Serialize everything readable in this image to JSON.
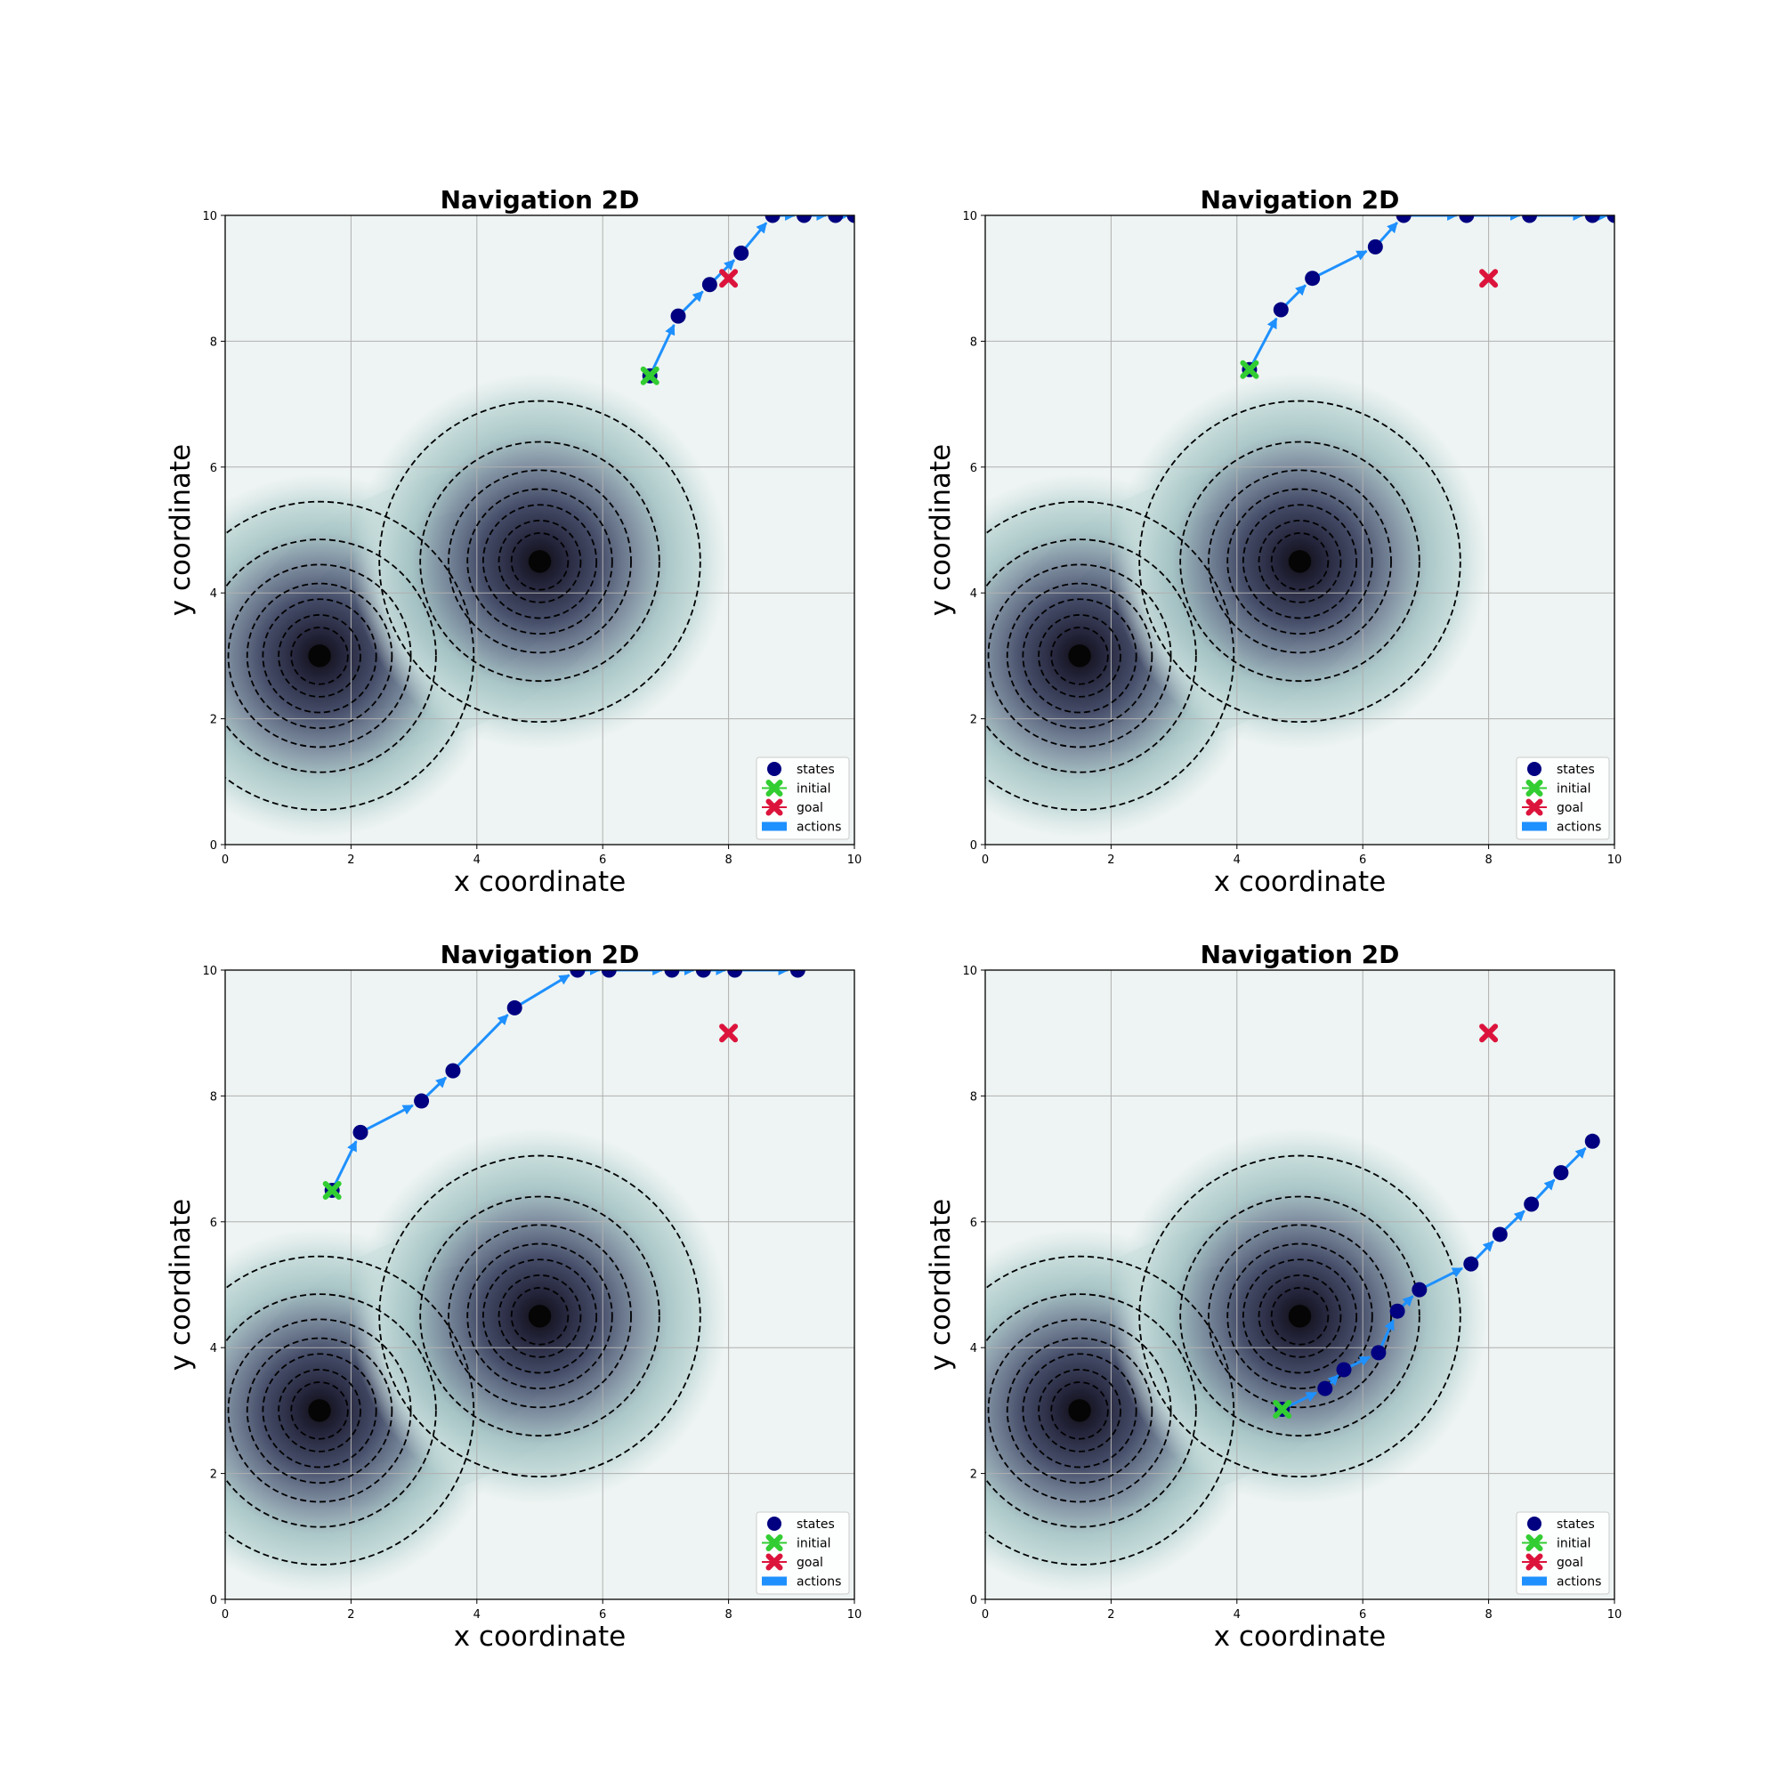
{
  "chart_data": [
    {
      "type": "scatter",
      "title": "Navigation 2D",
      "xlabel": "x coordinate",
      "ylabel": "y coordinate",
      "xlim": [
        0,
        10
      ],
      "ylim": [
        0,
        10
      ],
      "xticks": [
        "0",
        "2",
        "4",
        "6",
        "8",
        "10"
      ],
      "yticks": [
        "0",
        "2",
        "4",
        "6",
        "8",
        "10"
      ],
      "grid": true,
      "legend_position": "lower-right",
      "legend": [
        "states",
        "initial",
        "goal",
        "actions"
      ],
      "obstacle_centers": [
        [
          1.5,
          3.0
        ],
        [
          5.0,
          4.5
        ]
      ],
      "initial": [
        6.75,
        7.45
      ],
      "goal": [
        8.0,
        9.0
      ],
      "states": [
        [
          6.75,
          7.45
        ],
        [
          7.2,
          8.4
        ],
        [
          7.7,
          8.9
        ],
        [
          8.2,
          9.4
        ],
        [
          8.7,
          10.0
        ],
        [
          9.2,
          10.0
        ],
        [
          9.7,
          10.0
        ],
        [
          10.0,
          10.0
        ]
      ]
    },
    {
      "type": "scatter",
      "title": "Navigation 2D",
      "xlabel": "x coordinate",
      "ylabel": "y coordinate",
      "xlim": [
        0,
        10
      ],
      "ylim": [
        0,
        10
      ],
      "xticks": [
        "0",
        "2",
        "4",
        "6",
        "8",
        "10"
      ],
      "yticks": [
        "0",
        "2",
        "4",
        "6",
        "8",
        "10"
      ],
      "grid": true,
      "legend_position": "lower-right",
      "legend": [
        "states",
        "initial",
        "goal",
        "actions"
      ],
      "obstacle_centers": [
        [
          1.5,
          3.0
        ],
        [
          5.0,
          4.5
        ]
      ],
      "initial": [
        4.2,
        7.55
      ],
      "goal": [
        8.0,
        9.0
      ],
      "states": [
        [
          4.2,
          7.55
        ],
        [
          4.7,
          8.5
        ],
        [
          5.2,
          9.0
        ],
        [
          6.2,
          9.5
        ],
        [
          6.65,
          10.0
        ],
        [
          7.65,
          10.0
        ],
        [
          8.65,
          10.0
        ],
        [
          9.65,
          10.0
        ],
        [
          10.0,
          10.0
        ]
      ]
    },
    {
      "type": "scatter",
      "title": "Navigation 2D",
      "xlabel": "x coordinate",
      "ylabel": "y coordinate",
      "xlim": [
        0,
        10
      ],
      "ylim": [
        0,
        10
      ],
      "xticks": [
        "0",
        "2",
        "4",
        "6",
        "8",
        "10"
      ],
      "yticks": [
        "0",
        "2",
        "4",
        "6",
        "8",
        "10"
      ],
      "grid": true,
      "legend_position": "lower-right",
      "legend": [
        "states",
        "initial",
        "goal",
        "actions"
      ],
      "obstacle_centers": [
        [
          1.5,
          3.0
        ],
        [
          5.0,
          4.5
        ]
      ],
      "initial": [
        1.7,
        6.5
      ],
      "goal": [
        8.0,
        9.0
      ],
      "states": [
        [
          1.7,
          6.5
        ],
        [
          2.15,
          7.42
        ],
        [
          3.12,
          7.92
        ],
        [
          3.62,
          8.4
        ],
        [
          4.6,
          9.4
        ],
        [
          5.6,
          10.0
        ],
        [
          6.1,
          10.0
        ],
        [
          7.1,
          10.0
        ],
        [
          7.6,
          10.0
        ],
        [
          8.1,
          10.0
        ],
        [
          9.1,
          10.0
        ]
      ]
    },
    {
      "type": "scatter",
      "title": "Navigation 2D",
      "xlabel": "x coordinate",
      "ylabel": "y coordinate",
      "xlim": [
        0,
        10
      ],
      "ylim": [
        0,
        10
      ],
      "xticks": [
        "0",
        "2",
        "4",
        "6",
        "8",
        "10"
      ],
      "yticks": [
        "0",
        "2",
        "4",
        "6",
        "8",
        "10"
      ],
      "grid": true,
      "legend_position": "lower-right",
      "legend": [
        "states",
        "initial",
        "goal",
        "actions"
      ],
      "obstacle_centers": [
        [
          1.5,
          3.0
        ],
        [
          5.0,
          4.5
        ]
      ],
      "initial": [
        4.72,
        3.02
      ],
      "goal": [
        8.0,
        9.0
      ],
      "states": [
        [
          4.72,
          3.02
        ],
        [
          5.4,
          3.35
        ],
        [
          5.7,
          3.65
        ],
        [
          6.25,
          3.92
        ],
        [
          6.55,
          4.58
        ],
        [
          6.9,
          4.92
        ],
        [
          7.72,
          5.33
        ],
        [
          8.18,
          5.8
        ],
        [
          8.68,
          6.28
        ],
        [
          9.15,
          6.78
        ],
        [
          9.65,
          7.28
        ]
      ]
    }
  ],
  "colors": {
    "states": "#000080",
    "initial": "#32cd32",
    "goal": "#dc143c",
    "actions": "#1e90ff",
    "background": "#eef4f3",
    "grid": "#b0b0b0"
  }
}
